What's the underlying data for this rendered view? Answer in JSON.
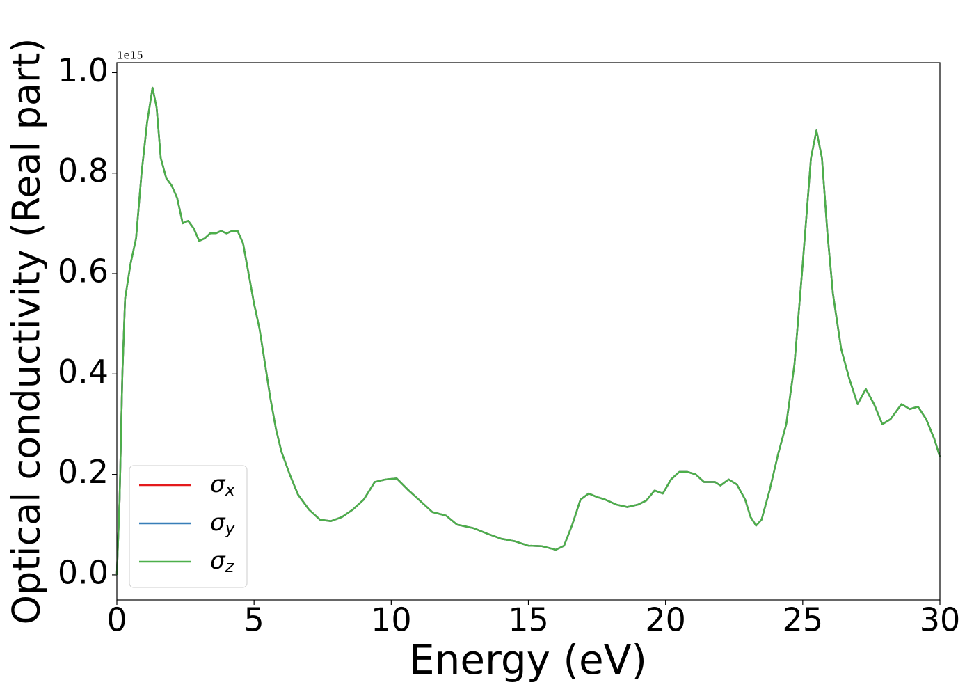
{
  "chart_data": {
    "type": "line",
    "x_label": "Energy (eV)",
    "y_label": "Optical conductivity (Real part)",
    "y_offset_label": "1e15",
    "x": [
      0,
      0.1,
      0.2,
      0.3,
      0.5,
      0.7,
      0.9,
      1.1,
      1.3,
      1.45,
      1.6,
      1.8,
      2.0,
      2.2,
      2.4,
      2.6,
      2.8,
      3.0,
      3.2,
      3.4,
      3.6,
      3.8,
      4.0,
      4.2,
      4.4,
      4.6,
      4.8,
      5.0,
      5.2,
      5.4,
      5.6,
      5.8,
      6.0,
      6.3,
      6.6,
      7.0,
      7.4,
      7.8,
      8.2,
      8.6,
      9.0,
      9.4,
      9.8,
      10.2,
      10.6,
      11.0,
      11.5,
      12.0,
      12.4,
      13.0,
      13.5,
      14.0,
      14.5,
      15.0,
      15.5,
      16.0,
      16.3,
      16.6,
      16.9,
      17.2,
      17.5,
      17.8,
      18.2,
      18.6,
      19.0,
      19.3,
      19.6,
      19.9,
      20.2,
      20.5,
      20.8,
      21.1,
      21.4,
      21.8,
      22.0,
      22.3,
      22.6,
      22.9,
      23.1,
      23.3,
      23.5,
      23.8,
      24.1,
      24.4,
      24.7,
      25.0,
      25.3,
      25.5,
      25.7,
      25.9,
      26.1,
      26.4,
      26.7,
      27.0,
      27.3,
      27.6,
      27.9,
      28.2,
      28.6,
      28.9,
      29.2,
      29.5,
      29.8,
      30.0
    ],
    "series": [
      {
        "name": "σx",
        "color": "#e41a1c",
        "values": [
          0.0,
          0.15,
          0.4,
          0.55,
          0.62,
          0.67,
          0.8,
          0.9,
          0.97,
          0.93,
          0.83,
          0.79,
          0.775,
          0.75,
          0.7,
          0.705,
          0.69,
          0.665,
          0.67,
          0.68,
          0.68,
          0.685,
          0.68,
          0.685,
          0.685,
          0.66,
          0.6,
          0.54,
          0.49,
          0.42,
          0.35,
          0.29,
          0.245,
          0.2,
          0.16,
          0.13,
          0.11,
          0.107,
          0.115,
          0.13,
          0.15,
          0.185,
          0.19,
          0.192,
          0.17,
          0.15,
          0.125,
          0.118,
          0.1,
          0.093,
          0.082,
          0.072,
          0.067,
          0.058,
          0.057,
          0.05,
          0.058,
          0.1,
          0.15,
          0.162,
          0.155,
          0.15,
          0.14,
          0.135,
          0.14,
          0.148,
          0.168,
          0.162,
          0.19,
          0.205,
          0.205,
          0.2,
          0.185,
          0.185,
          0.178,
          0.19,
          0.18,
          0.15,
          0.115,
          0.098,
          0.11,
          0.17,
          0.24,
          0.3,
          0.42,
          0.62,
          0.83,
          0.885,
          0.83,
          0.68,
          0.56,
          0.45,
          0.39,
          0.34,
          0.37,
          0.34,
          0.3,
          0.31,
          0.34,
          0.33,
          0.335,
          0.31,
          0.27,
          0.235
        ]
      },
      {
        "name": "σy",
        "color": "#377eb8",
        "values": [
          0.0,
          0.15,
          0.4,
          0.55,
          0.62,
          0.67,
          0.8,
          0.9,
          0.97,
          0.93,
          0.83,
          0.79,
          0.775,
          0.75,
          0.7,
          0.705,
          0.69,
          0.665,
          0.67,
          0.68,
          0.68,
          0.685,
          0.68,
          0.685,
          0.685,
          0.66,
          0.6,
          0.54,
          0.49,
          0.42,
          0.35,
          0.29,
          0.245,
          0.2,
          0.16,
          0.13,
          0.11,
          0.107,
          0.115,
          0.13,
          0.15,
          0.185,
          0.19,
          0.192,
          0.17,
          0.15,
          0.125,
          0.118,
          0.1,
          0.093,
          0.082,
          0.072,
          0.067,
          0.058,
          0.057,
          0.05,
          0.058,
          0.1,
          0.15,
          0.162,
          0.155,
          0.15,
          0.14,
          0.135,
          0.14,
          0.148,
          0.168,
          0.162,
          0.19,
          0.205,
          0.205,
          0.2,
          0.185,
          0.185,
          0.178,
          0.19,
          0.18,
          0.15,
          0.115,
          0.098,
          0.11,
          0.17,
          0.24,
          0.3,
          0.42,
          0.62,
          0.83,
          0.885,
          0.83,
          0.68,
          0.56,
          0.45,
          0.39,
          0.34,
          0.37,
          0.34,
          0.3,
          0.31,
          0.34,
          0.33,
          0.335,
          0.31,
          0.27,
          0.235
        ]
      },
      {
        "name": "σz",
        "color": "#4daf4a",
        "values": [
          0.0,
          0.15,
          0.4,
          0.55,
          0.62,
          0.67,
          0.8,
          0.9,
          0.97,
          0.93,
          0.83,
          0.79,
          0.775,
          0.75,
          0.7,
          0.705,
          0.69,
          0.665,
          0.67,
          0.68,
          0.68,
          0.685,
          0.68,
          0.685,
          0.685,
          0.66,
          0.6,
          0.54,
          0.49,
          0.42,
          0.35,
          0.29,
          0.245,
          0.2,
          0.16,
          0.13,
          0.11,
          0.107,
          0.115,
          0.13,
          0.15,
          0.185,
          0.19,
          0.192,
          0.17,
          0.15,
          0.125,
          0.118,
          0.1,
          0.093,
          0.082,
          0.072,
          0.067,
          0.058,
          0.057,
          0.05,
          0.058,
          0.1,
          0.15,
          0.162,
          0.155,
          0.15,
          0.14,
          0.135,
          0.14,
          0.148,
          0.168,
          0.162,
          0.19,
          0.205,
          0.205,
          0.2,
          0.185,
          0.185,
          0.178,
          0.19,
          0.18,
          0.15,
          0.115,
          0.098,
          0.11,
          0.17,
          0.24,
          0.3,
          0.42,
          0.62,
          0.83,
          0.885,
          0.83,
          0.68,
          0.56,
          0.45,
          0.39,
          0.34,
          0.37,
          0.34,
          0.3,
          0.31,
          0.34,
          0.33,
          0.335,
          0.31,
          0.27,
          0.235
        ]
      }
    ],
    "xlim": [
      0,
      30
    ],
    "xticks": [
      0,
      5,
      10,
      15,
      20,
      25,
      30
    ],
    "ylim": [
      -0.05,
      1.02
    ],
    "yticks": [
      {
        "value": 0,
        "label": "0.0"
      },
      0.2,
      0.4,
      0.6,
      0.8,
      {
        "value": 1,
        "label": "1.0"
      }
    ],
    "grid": false,
    "legend": "lower left"
  }
}
